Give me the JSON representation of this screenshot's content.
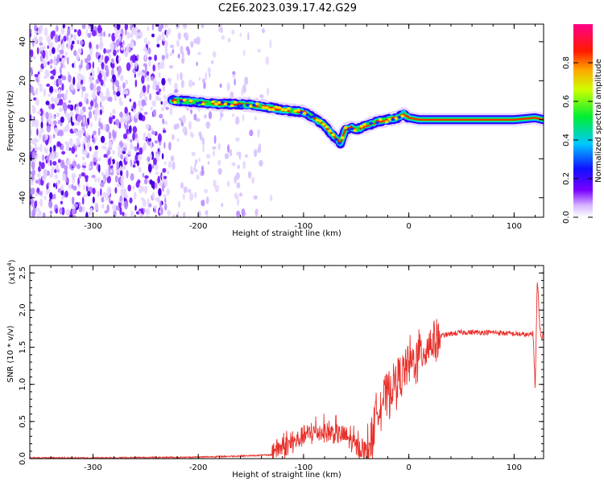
{
  "title": "C2E6.2023.039.17.42.G29",
  "colors": {
    "snr_line": "#e8302a",
    "ridge_core": "#ff2222",
    "ridge_mid": "#00ee44",
    "ridge_edge": "#2200ff",
    "noise": "#6a00e8"
  },
  "chart_data": [
    {
      "id": "spectrogram",
      "type": "heatmap",
      "title": "C2E6.2023.039.17.42.G29",
      "xlabel": "Height of straight line (km)",
      "ylabel": "Frequency (Hz)",
      "xlim": [
        -360,
        128
      ],
      "ylim": [
        -50,
        49
      ],
      "x_ticks": [
        -300,
        -200,
        -100,
        0,
        100
      ],
      "y_ticks": [
        -40,
        -20,
        0,
        20,
        40
      ],
      "colorbar": {
        "label": "Normalized spectral amplitude",
        "range": [
          0.0,
          1.0
        ],
        "ticks": [
          "0.0",
          "0.2",
          "0.4",
          "0.6",
          "0.8"
        ],
        "colormap": "rainbow (white-violet-blue-cyan-green-yellow-red-magenta)"
      },
      "ridge": {
        "x": [
          -225,
          -200,
          -180,
          -160,
          -140,
          -120,
          -100,
          -90,
          -80,
          -72,
          -65,
          -60,
          -55,
          -50,
          -40,
          -30,
          -20,
          -10,
          -5,
          0,
          10,
          50,
          100,
          120,
          128
        ],
        "y": [
          10,
          9,
          8,
          8,
          7,
          5,
          4,
          1,
          -3,
          -8,
          -12,
          -5,
          -4,
          -5,
          -3,
          -1,
          0,
          1,
          3,
          1,
          0,
          0,
          0,
          1,
          0
        ]
      },
      "noise_region": [
        -360,
        -130
      ]
    },
    {
      "id": "snr",
      "type": "line",
      "xlabel": "Height of straight line (km)",
      "ylabel": "SNR (10 * v/v)",
      "y_multiplier": "(x10^4)",
      "xlim": [
        -360,
        128
      ],
      "ylim": [
        0.0,
        2.6
      ],
      "x_ticks": [
        -300,
        -200,
        -100,
        0,
        100
      ],
      "y_ticks": [
        "0.0",
        "0.5",
        "1.0",
        "1.5",
        "2.0",
        "2.5"
      ],
      "series": [
        {
          "envelope_x": [
            -360,
            -300,
            -200,
            -150,
            -130,
            -110,
            -100,
            -90,
            -80,
            -70,
            -60,
            -50,
            -40,
            -35,
            -30,
            -20,
            -10,
            0,
            10,
            20,
            30,
            40,
            50,
            60,
            80,
            100,
            110,
            115,
            118,
            120,
            122,
            125,
            128
          ],
          "envelope_y": [
            0.01,
            0.01,
            0.02,
            0.04,
            0.05,
            0.15,
            0.25,
            0.3,
            0.3,
            0.28,
            0.25,
            0.1,
            0.05,
            0.3,
            0.7,
            0.9,
            1.1,
            1.25,
            1.4,
            1.55,
            1.65,
            1.68,
            1.7,
            1.7,
            1.7,
            1.68,
            1.67,
            1.66,
            1.7,
            0.95,
            2.4,
            1.65,
            1.66
          ]
        }
      ]
    }
  ]
}
